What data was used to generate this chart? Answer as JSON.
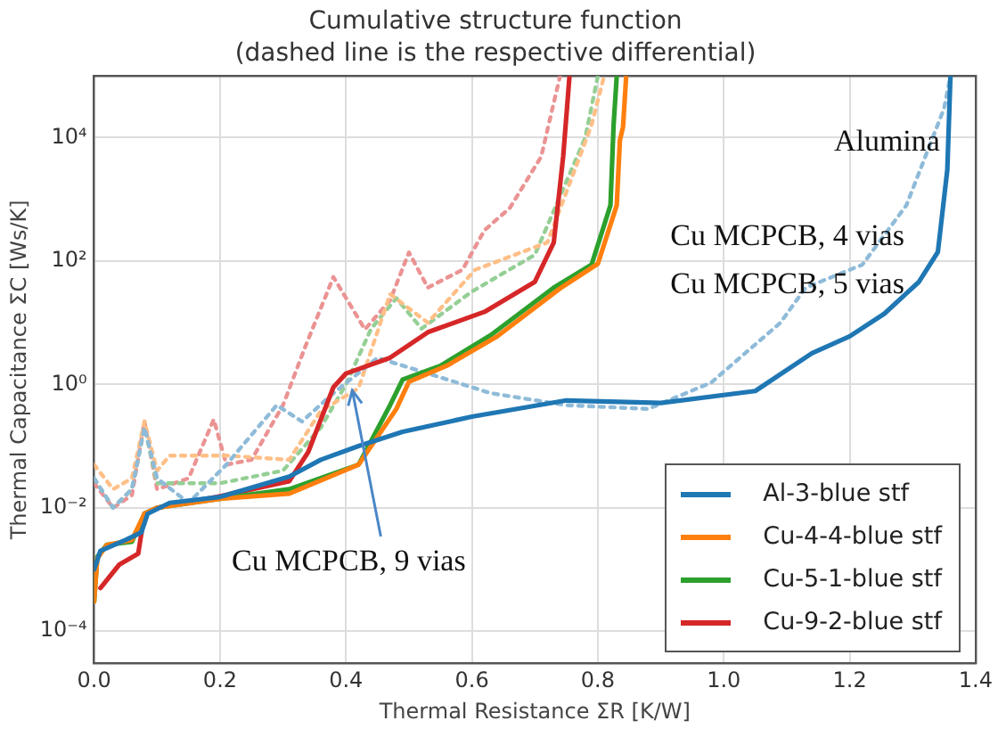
{
  "chart_data": {
    "type": "line",
    "title": "Cumulative structure function",
    "subtitle": "(dashed line is the respective differential)",
    "xlabel": "Thermal Resistance ΣR [K/W]",
    "ylabel": "Thermal Capacitance ΣC [Ws/K]",
    "xlim": [
      0,
      1.4
    ],
    "xticks": [
      {
        "value": 0,
        "label": "0.0"
      },
      {
        "value": 0.2,
        "label": "0.2"
      },
      {
        "value": 0.4,
        "label": "0.4"
      },
      {
        "value": 0.6,
        "label": "0.6"
      },
      {
        "value": 0.8,
        "label": "0.8"
      },
      {
        "value": 1,
        "label": "1.0"
      },
      {
        "value": 1.2,
        "label": "1.2"
      },
      {
        "value": 1.4,
        "label": "1.4"
      }
    ],
    "ylim": [
      3e-05,
      100000
    ],
    "yticks": [
      {
        "value": 0.0001,
        "label": "10⁻⁴"
      },
      {
        "value": 0.01,
        "label": "10⁻²"
      },
      {
        "value": 1,
        "label": "10⁰"
      },
      {
        "value": 100,
        "label": "10²"
      },
      {
        "value": 10000,
        "label": "10⁴"
      }
    ],
    "log": "y",
    "grid": true,
    "legend": "bottom right",
    "marker": "none",
    "series": [
      {
        "name": "Al-3-blue stf",
        "color": "#1f77b4",
        "line_style": "solid",
        "x": [
          0,
          0.01,
          0.05,
          0.075,
          0.085,
          0.12,
          0.2,
          0.31,
          0.36,
          0.42,
          0.49,
          0.6,
          0.75,
          0.9,
          1.05,
          1.14,
          1.2,
          1.255,
          1.31,
          1.34,
          1.355,
          1.36
        ],
        "values": [
          0.001,
          0.002,
          0.003,
          0.004,
          0.008,
          0.012,
          0.015,
          0.032,
          0.06,
          0.1,
          0.17,
          0.3,
          0.55,
          0.5,
          0.78,
          3.2,
          6,
          14,
          46,
          140,
          3000,
          100000
        ]
      },
      {
        "name": "Cu-4-4-blue stf",
        "color": "#ff7f0e",
        "line_style": "solid",
        "x": [
          0,
          0.005,
          0.02,
          0.06,
          0.08,
          0.1,
          0.2,
          0.31,
          0.42,
          0.48,
          0.5,
          0.56,
          0.64,
          0.74,
          0.8,
          0.83,
          0.835,
          0.84,
          0.845
        ],
        "values": [
          0.0003,
          0.0015,
          0.0025,
          0.003,
          0.008,
          0.01,
          0.014,
          0.017,
          0.05,
          0.4,
          1.1,
          2,
          6,
          36,
          90,
          800,
          9000,
          15000,
          100000
        ]
      },
      {
        "name": "Cu-5-1-blue stf",
        "color": "#2ca02c",
        "line_style": "solid",
        "x": [
          0,
          0.005,
          0.02,
          0.06,
          0.08,
          0.1,
          0.2,
          0.31,
          0.42,
          0.47,
          0.49,
          0.55,
          0.63,
          0.73,
          0.79,
          0.82,
          0.825,
          0.83
        ],
        "values": [
          0.0003,
          0.0016,
          0.0025,
          0.0028,
          0.008,
          0.01,
          0.014,
          0.02,
          0.05,
          0.46,
          1.2,
          2,
          6.3,
          37,
          87,
          800,
          16000,
          100000
        ]
      },
      {
        "name": "Cu-9-2-blue stf",
        "color": "#d62728",
        "line_style": "solid",
        "x": [
          0.01,
          0.04,
          0.07,
          0.08,
          0.1,
          0.195,
          0.31,
          0.34,
          0.38,
          0.4,
          0.47,
          0.53,
          0.62,
          0.7,
          0.73,
          0.745,
          0.755
        ],
        "values": [
          0.0005,
          0.0012,
          0.0018,
          0.008,
          0.01,
          0.015,
          0.027,
          0.08,
          0.9,
          1.5,
          2.7,
          7,
          15,
          46,
          200,
          5000,
          100000
        ]
      },
      {
        "color": "#8fbbd9",
        "line_style": "dotted",
        "x": [
          0,
          0.03,
          0.06,
          0.08,
          0.1,
          0.15,
          0.21,
          0.29,
          0.33,
          0.38,
          0.45,
          0.54,
          0.63,
          0.75,
          0.88,
          0.98,
          1.09,
          1.13,
          1.22,
          1.29,
          1.35,
          1.36
        ],
        "values": [
          0.03,
          0.01,
          0.02,
          0.2,
          0.03,
          0.012,
          0.05,
          0.46,
          0.25,
          0.72,
          2.7,
          1.4,
          0.72,
          0.46,
          0.4,
          1.07,
          10,
          37,
          87,
          800,
          30000,
          100000
        ]
      },
      {
        "color": "#ffbf87",
        "line_style": "dotted",
        "x": [
          0,
          0.03,
          0.06,
          0.08,
          0.1,
          0.12,
          0.21,
          0.31,
          0.36,
          0.42,
          0.47,
          0.53,
          0.605,
          0.72,
          0.79,
          0.81
        ],
        "values": [
          0.05,
          0.02,
          0.03,
          0.25,
          0.04,
          0.07,
          0.07,
          0.06,
          0.37,
          0.87,
          29,
          10,
          72,
          200,
          16000,
          100000
        ]
      },
      {
        "color": "#95cf95",
        "line_style": "dotted",
        "x": [
          0,
          0.03,
          0.06,
          0.08,
          0.1,
          0.2,
          0.3,
          0.36,
          0.4,
          0.44,
          0.48,
          0.52,
          0.6,
          0.7,
          0.78,
          0.8
        ],
        "values": [
          0.03,
          0.01,
          0.02,
          0.2,
          0.025,
          0.025,
          0.04,
          0.2,
          1,
          8,
          25,
          8,
          32,
          126,
          10000,
          100000
        ]
      },
      {
        "color": "#eb9393",
        "line_style": "dotted",
        "x": [
          0,
          0.03,
          0.06,
          0.08,
          0.1,
          0.15,
          0.19,
          0.21,
          0.25,
          0.3,
          0.335,
          0.38,
          0.43,
          0.47,
          0.5,
          0.53,
          0.585,
          0.62,
          0.66,
          0.71,
          0.74
        ],
        "values": [
          0.025,
          0.01,
          0.016,
          0.25,
          0.02,
          0.03,
          0.27,
          0.05,
          0.06,
          0.46,
          4,
          55,
          7.8,
          23,
          138,
          37,
          72,
          316,
          720,
          4900,
          100000
        ]
      }
    ],
    "annotations": [
      "Alumina",
      "Cu MCPCB, 4 vias",
      "Cu MCPCB, 5 vias",
      {
        "text": "Cu MCPCB, 9 vias",
        "x": 0.41,
        "y": 0.8
      }
    ]
  }
}
